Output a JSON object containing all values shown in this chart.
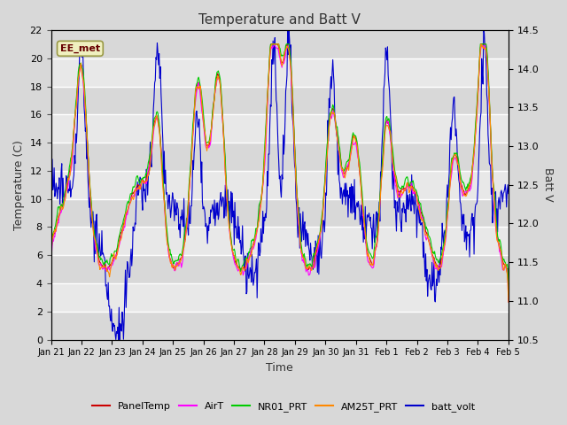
{
  "title": "Temperature and Batt V",
  "xlabel": "Time",
  "ylabel_left": "Temperature (C)",
  "ylabel_right": "Batt V",
  "annotation": "EE_met",
  "ylim_left": [
    0,
    22
  ],
  "ylim_right": [
    10.5,
    14.5
  ],
  "xtick_labels": [
    "Jan 21",
    "Jan 22",
    "Jan 23",
    "Jan 24",
    "Jan 25",
    "Jan 26",
    "Jan 27",
    "Jan 28",
    "Jan 29",
    "Jan 30",
    "Jan 31",
    "Feb 1",
    "Feb 2",
    "Feb 3",
    "Feb 4",
    "Feb 5"
  ],
  "background_color": "#d8d8d8",
  "plot_bg_alt1": "#e8e8e8",
  "plot_bg_alt2": "#d8d8d8",
  "series": {
    "PanelTemp": {
      "color": "#cc0000",
      "lw": 0.8
    },
    "AirT": {
      "color": "#ff00ff",
      "lw": 0.8
    },
    "NR01_PRT": {
      "color": "#00cc00",
      "lw": 0.8
    },
    "AM25T_PRT": {
      "color": "#ff8800",
      "lw": 0.8
    },
    "batt_volt": {
      "color": "#0000cc",
      "lw": 0.8
    }
  },
  "legend_series": [
    "PanelTemp",
    "AirT",
    "NR01_PRT",
    "AM25T_PRT",
    "batt_volt"
  ],
  "legend_colors": [
    "#cc0000",
    "#ff00ff",
    "#00cc00",
    "#ff8800",
    "#0000cc"
  ],
  "figsize": [
    6.4,
    4.8
  ],
  "dpi": 100
}
